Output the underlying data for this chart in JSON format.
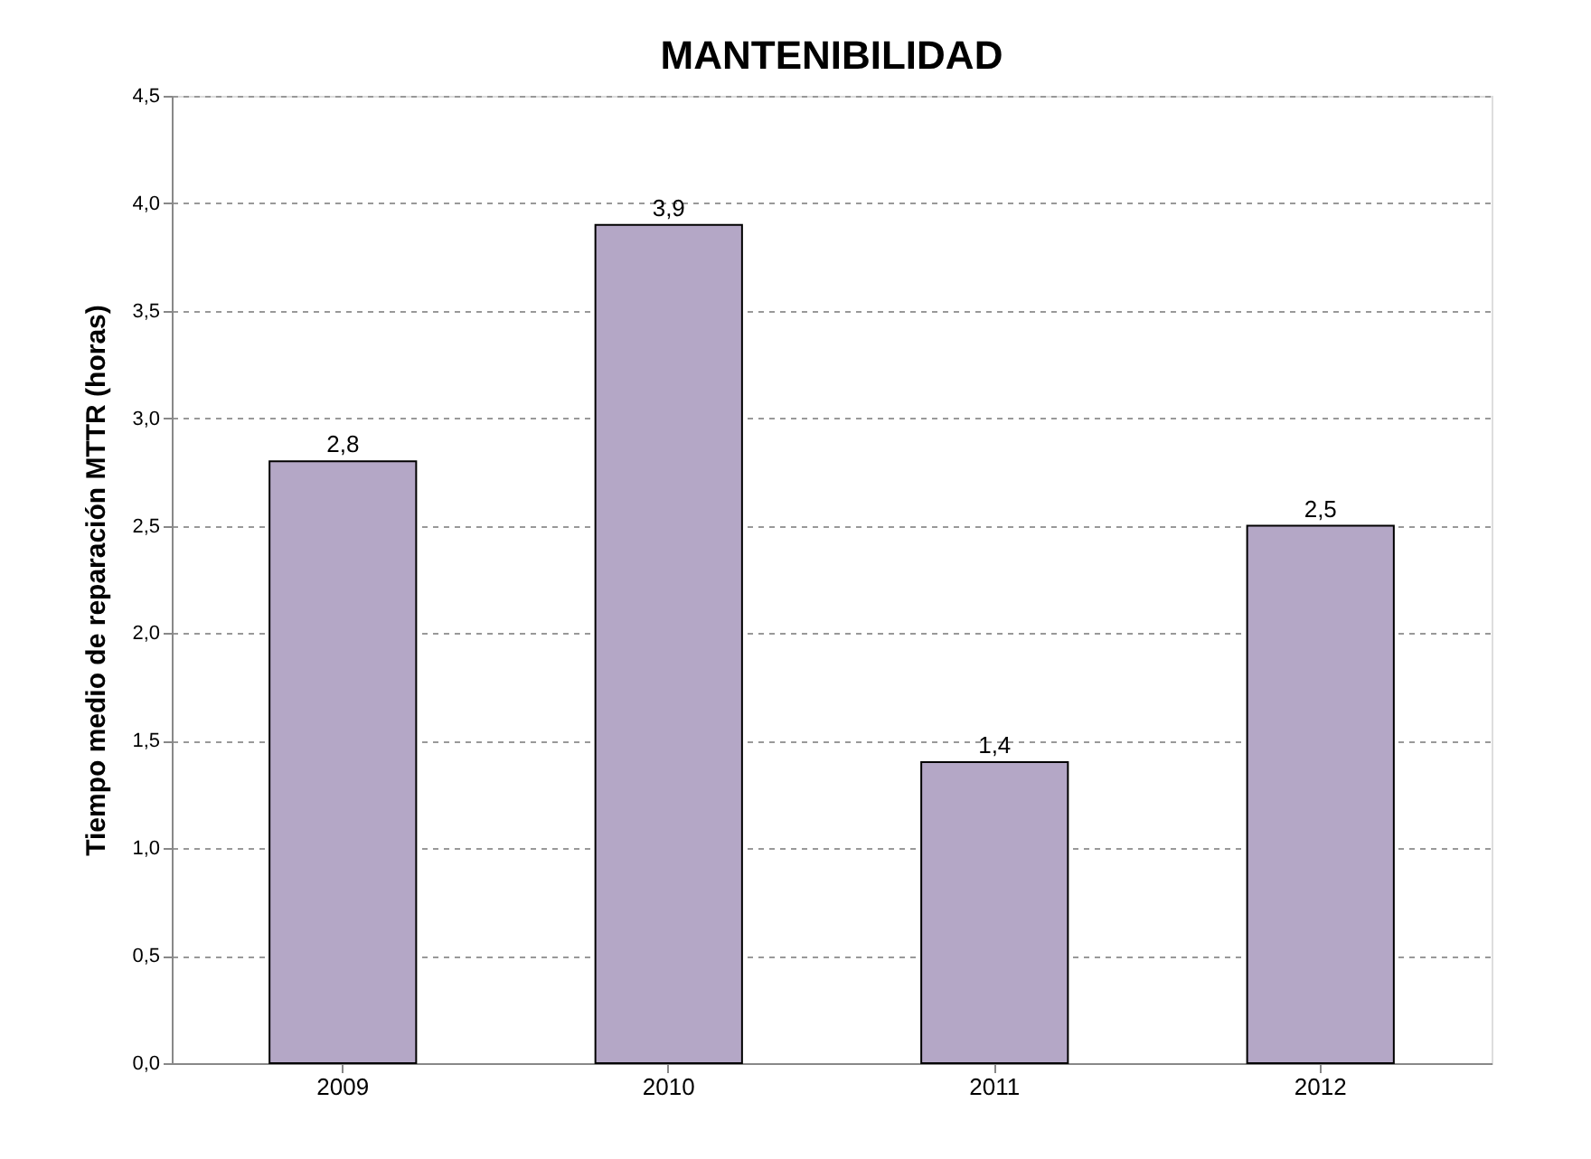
{
  "chart_data": {
    "type": "bar",
    "title": "MANTENIBILIDAD",
    "ylabel": "Tiempo medio de reparación MTTR (horas)",
    "categories": [
      "2009",
      "2010",
      "2011",
      "2012"
    ],
    "values": [
      2.8,
      3.9,
      1.4,
      2.5
    ],
    "value_labels": [
      "2,8",
      "3,9",
      "1,4",
      "2,5"
    ],
    "color": "#b4a7c6",
    "ylim": [
      0,
      4.5
    ],
    "yticks": [
      {
        "value": 0,
        "label": "0,0"
      },
      {
        "value": 0.5,
        "label": "0,5"
      },
      {
        "value": 1,
        "label": "1,0"
      },
      {
        "value": 1.5,
        "label": "1,5"
      },
      {
        "value": 2,
        "label": "2,0"
      },
      {
        "value": 2.5,
        "label": "2,5"
      },
      {
        "value": 3,
        "label": "3,0"
      },
      {
        "value": 3.5,
        "label": "3,5"
      },
      {
        "value": 4,
        "label": "4,0"
      },
      {
        "value": 4.5,
        "label": "4,5"
      }
    ],
    "grid": "y"
  }
}
